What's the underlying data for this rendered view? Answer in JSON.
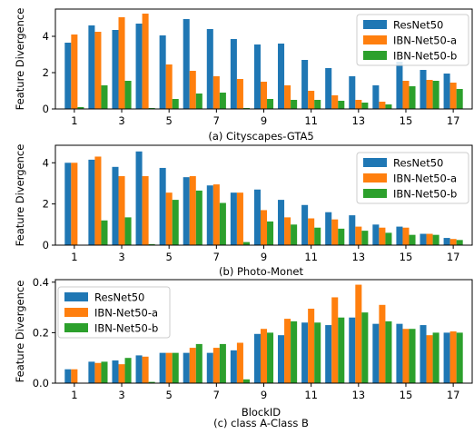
{
  "figure": {
    "xlabel": "BlockID"
  },
  "colors": {
    "ResNet50": "#1f77b4",
    "IBN-Net50-a": "#ff7f0e",
    "IBN-Net50-b": "#2ca02c"
  },
  "chart_data": [
    {
      "type": "bar",
      "caption": "(a) Cityscapes-GTA5",
      "ylabel": "Feature Divergence",
      "ylim": [
        0,
        5.5
      ],
      "yticks": [
        0,
        2,
        4
      ],
      "legend_position": "top-right",
      "categories": [
        1,
        2,
        3,
        4,
        5,
        6,
        7,
        8,
        9,
        10,
        11,
        12,
        13,
        14,
        15,
        16,
        17
      ],
      "xticks": [
        1,
        3,
        5,
        7,
        9,
        11,
        13,
        15,
        17
      ],
      "series": [
        {
          "name": "ResNet50",
          "values": [
            3.65,
            4.6,
            4.35,
            4.7,
            4.05,
            4.95,
            4.4,
            3.85,
            3.55,
            3.6,
            2.7,
            2.25,
            1.8,
            1.3,
            2.6,
            2.15,
            1.95
          ]
        },
        {
          "name": "IBN-Net50-a",
          "values": [
            4.1,
            4.25,
            5.05,
            5.25,
            2.45,
            2.1,
            1.8,
            1.65,
            1.5,
            1.3,
            1.0,
            0.75,
            0.5,
            0.4,
            1.55,
            1.6,
            1.45
          ]
        },
        {
          "name": "IBN-Net50-b",
          "values": [
            0.1,
            1.3,
            1.55,
            0.05,
            0.55,
            0.85,
            0.9,
            0.05,
            0.55,
            0.5,
            0.5,
            0.45,
            0.35,
            0.25,
            1.25,
            1.55,
            1.1
          ]
        }
      ]
    },
    {
      "type": "bar",
      "caption": "(b) Photo-Monet",
      "ylabel": "Feature Divergence",
      "ylim": [
        0,
        4.85
      ],
      "yticks": [
        0,
        2,
        4
      ],
      "legend_position": "top-right",
      "categories": [
        1,
        2,
        3,
        4,
        5,
        6,
        7,
        8,
        9,
        10,
        11,
        12,
        13,
        14,
        15,
        16,
        17
      ],
      "xticks": [
        1,
        3,
        5,
        7,
        9,
        11,
        13,
        15,
        17
      ],
      "series": [
        {
          "name": "ResNet50",
          "values": [
            4.0,
            4.15,
            3.8,
            4.55,
            3.75,
            3.3,
            2.9,
            2.55,
            2.7,
            2.2,
            1.95,
            1.6,
            1.45,
            1.0,
            0.9,
            0.55,
            0.35
          ]
        },
        {
          "name": "IBN-Net50-a",
          "values": [
            4.0,
            4.3,
            3.35,
            3.35,
            2.55,
            3.35,
            2.95,
            2.55,
            1.7,
            1.35,
            1.3,
            1.25,
            0.9,
            0.85,
            0.85,
            0.55,
            0.3
          ]
        },
        {
          "name": "IBN-Net50-b",
          "values": [
            0.0,
            1.2,
            1.35,
            0.05,
            2.2,
            2.65,
            2.05,
            0.15,
            1.15,
            1.0,
            0.85,
            0.8,
            0.7,
            0.6,
            0.5,
            0.5,
            0.25
          ]
        }
      ]
    },
    {
      "type": "bar",
      "caption": "(c) class A-Class B",
      "ylabel": "Feature Divergence",
      "ylim": [
        0,
        0.41
      ],
      "yticks": [
        0.0,
        0.2,
        0.4
      ],
      "legend_position": "top-left",
      "categories": [
        1,
        2,
        3,
        4,
        5,
        6,
        7,
        8,
        9,
        10,
        11,
        12,
        13,
        14,
        15,
        16,
        17
      ],
      "xticks": [
        1,
        3,
        5,
        7,
        9,
        11,
        13,
        15,
        17
      ],
      "series": [
        {
          "name": "ResNet50",
          "values": [
            0.055,
            0.085,
            0.09,
            0.11,
            0.12,
            0.12,
            0.12,
            0.13,
            0.195,
            0.19,
            0.24,
            0.23,
            0.26,
            0.235,
            0.235,
            0.23,
            0.2
          ]
        },
        {
          "name": "IBN-Net50-a",
          "values": [
            0.055,
            0.08,
            0.075,
            0.105,
            0.12,
            0.14,
            0.14,
            0.16,
            0.215,
            0.255,
            0.295,
            0.34,
            0.39,
            0.31,
            0.215,
            0.19,
            0.205
          ]
        },
        {
          "name": "IBN-Net50-b",
          "values": [
            0.0,
            0.085,
            0.1,
            0.005,
            0.12,
            0.155,
            0.155,
            0.015,
            0.2,
            0.245,
            0.24,
            0.26,
            0.28,
            0.245,
            0.215,
            0.2,
            0.2
          ]
        }
      ]
    }
  ]
}
